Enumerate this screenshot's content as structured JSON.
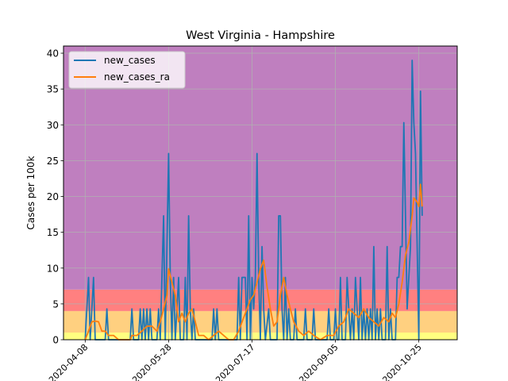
{
  "chart_data": {
    "type": "line",
    "title": "West Virginia - Hampshire",
    "xlabel": "",
    "ylabel": "Cases per 100k",
    "xlim": [
      "2020-03-26",
      "2020-11-17"
    ],
    "ylim": [
      0,
      41
    ],
    "xticks": [
      "2020-04-08",
      "2020-05-28",
      "2020-07-17",
      "2020-09-05",
      "2020-10-25"
    ],
    "yticks": [
      0,
      5,
      10,
      15,
      20,
      25,
      30,
      35,
      40
    ],
    "grid": true,
    "legend_position": "upper left",
    "bands": [
      {
        "from": 0,
        "to": 1,
        "color": "#ffff80"
      },
      {
        "from": 1,
        "to": 4,
        "color": "#ffd080"
      },
      {
        "from": 4,
        "to": 7,
        "color": "#ff8080"
      },
      {
        "from": 7,
        "to": 41,
        "color": "#bf7fbf"
      }
    ],
    "series": [
      {
        "name": "new_cases",
        "color": "#1f77b4",
        "points": [
          [
            "2020-04-08",
            0
          ],
          [
            "2020-04-10",
            8.7
          ],
          [
            "2020-04-11",
            0
          ],
          [
            "2020-04-13",
            8.7
          ],
          [
            "2020-04-14",
            0
          ],
          [
            "2020-04-20",
            0
          ],
          [
            "2020-04-21",
            4.3
          ],
          [
            "2020-04-22",
            0
          ],
          [
            "2020-05-05",
            0
          ],
          [
            "2020-05-06",
            4.3
          ],
          [
            "2020-05-07",
            0
          ],
          [
            "2020-05-10",
            0
          ],
          [
            "2020-05-11",
            4.3
          ],
          [
            "2020-05-12",
            0
          ],
          [
            "2020-05-13",
            4.3
          ],
          [
            "2020-05-14",
            0
          ],
          [
            "2020-05-15",
            4.3
          ],
          [
            "2020-05-16",
            0
          ],
          [
            "2020-05-17",
            4.3
          ],
          [
            "2020-05-18",
            0
          ],
          [
            "2020-05-21",
            0
          ],
          [
            "2020-05-22",
            4.3
          ],
          [
            "2020-05-23",
            0
          ],
          [
            "2020-05-24",
            8.7
          ],
          [
            "2020-05-25",
            17.3
          ],
          [
            "2020-05-26",
            0
          ],
          [
            "2020-05-28",
            26
          ],
          [
            "2020-05-29",
            8.7
          ],
          [
            "2020-05-30",
            0
          ],
          [
            "2020-05-31",
            8.7
          ],
          [
            "2020-06-01",
            0
          ],
          [
            "2020-06-03",
            8.7
          ],
          [
            "2020-06-04",
            0
          ],
          [
            "2020-06-06",
            0
          ],
          [
            "2020-06-07",
            8.7
          ],
          [
            "2020-06-08",
            0
          ],
          [
            "2020-06-09",
            17.3
          ],
          [
            "2020-06-10",
            4.3
          ],
          [
            "2020-06-11",
            0
          ],
          [
            "2020-06-12",
            4.3
          ],
          [
            "2020-06-13",
            0
          ],
          [
            "2020-06-23",
            0
          ],
          [
            "2020-06-24",
            4.3
          ],
          [
            "2020-06-25",
            0
          ],
          [
            "2020-06-26",
            4.3
          ],
          [
            "2020-06-27",
            0
          ],
          [
            "2020-07-08",
            0
          ],
          [
            "2020-07-09",
            8.7
          ],
          [
            "2020-07-10",
            0
          ],
          [
            "2020-07-11",
            8.7
          ],
          [
            "2020-07-13",
            8.7
          ],
          [
            "2020-07-14",
            0
          ],
          [
            "2020-07-15",
            17.3
          ],
          [
            "2020-07-16",
            0
          ],
          [
            "2020-07-17",
            8.7
          ],
          [
            "2020-07-18",
            4.3
          ],
          [
            "2020-07-19",
            8.7
          ],
          [
            "2020-07-20",
            26
          ],
          [
            "2020-07-21",
            8.7
          ],
          [
            "2020-07-22",
            0
          ],
          [
            "2020-07-23",
            13
          ],
          [
            "2020-07-24",
            4.3
          ],
          [
            "2020-07-25",
            0
          ],
          [
            "2020-07-27",
            4.3
          ],
          [
            "2020-07-28",
            0
          ],
          [
            "2020-08-01",
            0
          ],
          [
            "2020-08-02",
            17.3
          ],
          [
            "2020-08-03",
            17.3
          ],
          [
            "2020-08-04",
            4.3
          ],
          [
            "2020-08-05",
            0
          ],
          [
            "2020-08-06",
            8.7
          ],
          [
            "2020-08-07",
            0
          ],
          [
            "2020-08-08",
            4.3
          ],
          [
            "2020-08-09",
            0
          ],
          [
            "2020-08-11",
            0
          ],
          [
            "2020-08-12",
            4.3
          ],
          [
            "2020-08-13",
            0
          ],
          [
            "2020-08-17",
            0
          ],
          [
            "2020-08-18",
            4.3
          ],
          [
            "2020-08-19",
            0
          ],
          [
            "2020-08-22",
            0
          ],
          [
            "2020-08-23",
            4.3
          ],
          [
            "2020-08-24",
            0
          ],
          [
            "2020-08-31",
            0
          ],
          [
            "2020-09-01",
            4.3
          ],
          [
            "2020-09-02",
            0
          ],
          [
            "2020-09-04",
            0
          ],
          [
            "2020-09-05",
            4.3
          ],
          [
            "2020-09-06",
            0
          ],
          [
            "2020-09-07",
            0
          ],
          [
            "2020-09-08",
            8.7
          ],
          [
            "2020-09-09",
            0
          ],
          [
            "2020-09-11",
            0
          ],
          [
            "2020-09-12",
            8.7
          ],
          [
            "2020-09-13",
            4.3
          ],
          [
            "2020-09-14",
            0
          ],
          [
            "2020-09-15",
            4.3
          ],
          [
            "2020-09-16",
            0
          ],
          [
            "2020-09-17",
            8.7
          ],
          [
            "2020-09-18",
            4.3
          ],
          [
            "2020-09-19",
            0
          ],
          [
            "2020-09-20",
            8.7
          ],
          [
            "2020-09-21",
            0
          ],
          [
            "2020-09-22",
            4.3
          ],
          [
            "2020-09-23",
            0
          ],
          [
            "2020-09-24",
            4.3
          ],
          [
            "2020-09-25",
            0
          ],
          [
            "2020-09-26",
            4.3
          ],
          [
            "2020-09-27",
            0
          ],
          [
            "2020-09-28",
            13
          ],
          [
            "2020-09-29",
            0
          ],
          [
            "2020-09-30",
            4.3
          ],
          [
            "2020-10-01",
            0
          ],
          [
            "2020-10-02",
            4.3
          ],
          [
            "2020-10-03",
            0
          ],
          [
            "2020-10-05",
            0
          ],
          [
            "2020-10-06",
            13
          ],
          [
            "2020-10-07",
            0
          ],
          [
            "2020-10-08",
            4.3
          ],
          [
            "2020-10-09",
            0
          ],
          [
            "2020-10-11",
            0
          ],
          [
            "2020-10-12",
            8.7
          ],
          [
            "2020-10-13",
            8.7
          ],
          [
            "2020-10-14",
            13
          ],
          [
            "2020-10-15",
            13
          ],
          [
            "2020-10-16",
            30.3
          ],
          [
            "2020-10-17",
            17.3
          ],
          [
            "2020-10-18",
            4.3
          ],
          [
            "2020-10-19",
            8.7
          ],
          [
            "2020-10-20",
            13
          ],
          [
            "2020-10-21",
            39
          ],
          [
            "2020-10-22",
            30.3
          ],
          [
            "2020-10-23",
            26
          ],
          [
            "2020-10-24",
            13
          ],
          [
            "2020-10-25",
            0
          ],
          [
            "2020-10-26",
            34.7
          ],
          [
            "2020-10-27",
            17.3
          ]
        ]
      },
      {
        "name": "new_cases_ra",
        "color": "#ff7f0e",
        "points": [
          [
            "2020-04-08",
            0
          ],
          [
            "2020-04-10",
            1.2
          ],
          [
            "2020-04-12",
            2.5
          ],
          [
            "2020-04-14",
            2.6
          ],
          [
            "2020-04-16",
            2.5
          ],
          [
            "2020-04-18",
            1.2
          ],
          [
            "2020-04-20",
            1.2
          ],
          [
            "2020-04-22",
            0.6
          ],
          [
            "2020-04-25",
            0.6
          ],
          [
            "2020-04-28",
            0
          ],
          [
            "2020-05-05",
            0
          ],
          [
            "2020-05-06",
            0.6
          ],
          [
            "2020-05-09",
            0.6
          ],
          [
            "2020-05-12",
            1.2
          ],
          [
            "2020-05-15",
            1.9
          ],
          [
            "2020-05-18",
            1.9
          ],
          [
            "2020-05-21",
            1.2
          ],
          [
            "2020-05-23",
            2.5
          ],
          [
            "2020-05-25",
            4.3
          ],
          [
            "2020-05-27",
            6.2
          ],
          [
            "2020-05-28",
            9.9
          ],
          [
            "2020-05-30",
            8.0
          ],
          [
            "2020-06-01",
            6.2
          ],
          [
            "2020-06-03",
            2.5
          ],
          [
            "2020-06-05",
            3.7
          ],
          [
            "2020-06-07",
            2.5
          ],
          [
            "2020-06-09",
            3.7
          ],
          [
            "2020-06-11",
            4.3
          ],
          [
            "2020-06-13",
            2.5
          ],
          [
            "2020-06-15",
            0.6
          ],
          [
            "2020-06-18",
            0.6
          ],
          [
            "2020-06-21",
            0
          ],
          [
            "2020-06-24",
            0.6
          ],
          [
            "2020-06-27",
            1.2
          ],
          [
            "2020-06-30",
            0.6
          ],
          [
            "2020-07-03",
            0
          ],
          [
            "2020-07-06",
            0
          ],
          [
            "2020-07-09",
            1.2
          ],
          [
            "2020-07-12",
            3.1
          ],
          [
            "2020-07-14",
            4.3
          ],
          [
            "2020-07-16",
            5.6
          ],
          [
            "2020-07-18",
            6.2
          ],
          [
            "2020-07-20",
            8.0
          ],
          [
            "2020-07-22",
            9.9
          ],
          [
            "2020-07-24",
            11.1
          ],
          [
            "2020-07-26",
            7.4
          ],
          [
            "2020-07-28",
            4.3
          ],
          [
            "2020-07-30",
            1.9
          ],
          [
            "2020-08-01",
            2.5
          ],
          [
            "2020-08-03",
            6.2
          ],
          [
            "2020-08-05",
            8.7
          ],
          [
            "2020-08-07",
            6.2
          ],
          [
            "2020-08-09",
            4.3
          ],
          [
            "2020-08-11",
            2.5
          ],
          [
            "2020-08-14",
            1.2
          ],
          [
            "2020-08-17",
            0.6
          ],
          [
            "2020-08-20",
            1.2
          ],
          [
            "2020-08-23",
            0.6
          ],
          [
            "2020-08-27",
            0
          ],
          [
            "2020-08-31",
            0.6
          ],
          [
            "2020-09-04",
            0.6
          ],
          [
            "2020-09-07",
            1.9
          ],
          [
            "2020-09-10",
            2.5
          ],
          [
            "2020-09-13",
            4.3
          ],
          [
            "2020-09-16",
            3.7
          ],
          [
            "2020-09-19",
            3.1
          ],
          [
            "2020-09-22",
            4.3
          ],
          [
            "2020-09-25",
            3.1
          ],
          [
            "2020-09-28",
            2.5
          ],
          [
            "2020-10-01",
            1.9
          ],
          [
            "2020-10-04",
            3.1
          ],
          [
            "2020-10-07",
            2.5
          ],
          [
            "2020-10-09",
            3.7
          ],
          [
            "2020-10-11",
            3.1
          ],
          [
            "2020-10-13",
            5.0
          ],
          [
            "2020-10-15",
            8.0
          ],
          [
            "2020-10-17",
            11.8
          ],
          [
            "2020-10-19",
            13.6
          ],
          [
            "2020-10-21",
            17.3
          ],
          [
            "2020-10-22",
            19.8
          ],
          [
            "2020-10-24",
            19.2
          ],
          [
            "2020-10-25",
            18.6
          ],
          [
            "2020-10-26",
            21.7
          ],
          [
            "2020-10-27",
            18.6
          ]
        ]
      }
    ]
  }
}
